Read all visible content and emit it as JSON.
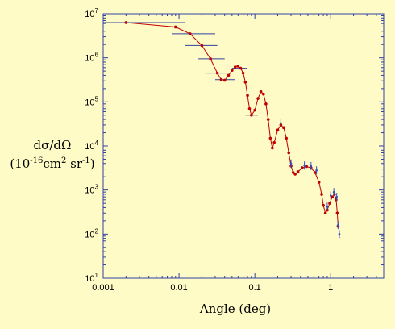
{
  "chart_data": {
    "type": "scatter",
    "x_scale": "log",
    "y_scale": "log",
    "xlim": [
      0.001,
      5
    ],
    "ylim": [
      10,
      10000000
    ],
    "grid": false,
    "x_ticks": [
      {
        "value": 0.001,
        "label": "0.001"
      },
      {
        "value": 0.01,
        "label": "0.01"
      },
      {
        "value": 0.1,
        "label": "0.1"
      },
      {
        "value": 1,
        "label": "1"
      }
    ],
    "y_ticks": [
      {
        "value": 10,
        "base": "10",
        "exp": "1"
      },
      {
        "value": 100,
        "base": "10",
        "exp": "2"
      },
      {
        "value": 1000,
        "base": "10",
        "exp": "3"
      },
      {
        "value": 10000,
        "base": "10",
        "exp": "4"
      },
      {
        "value": 100000,
        "base": "10",
        "exp": "5"
      },
      {
        "value": 1000000,
        "base": "10",
        "exp": "6"
      },
      {
        "value": 10000000,
        "base": "10",
        "exp": "7"
      }
    ],
    "xlabel": "Angle (deg)",
    "ylabel_line1": "dσ/dΩ",
    "ylabel_line2_prefix": "(10",
    "ylabel_exp1": "-16",
    "ylabel_mid": "cm",
    "ylabel_exp2": "2",
    "ylabel_mid2": " sr",
    "ylabel_exp3": "-1",
    "ylabel_suffix": ")",
    "colors": {
      "red": "#c00000",
      "blue": "#3050c0",
      "axis": "#3040a0",
      "background": "#fffbc6"
    },
    "series": [
      {
        "color": "red",
        "points": [
          [
            0.002,
            6300000
          ],
          [
            0.009,
            5000000
          ],
          [
            0.014,
            3500000
          ],
          [
            0.02,
            1900000
          ],
          [
            0.026,
            950000
          ],
          [
            0.032,
            450000
          ],
          [
            0.036,
            320000
          ],
          [
            0.04,
            310000
          ],
          [
            0.045,
            400000
          ],
          [
            0.05,
            520000
          ],
          [
            0.055,
            620000
          ],
          [
            0.06,
            650000
          ],
          [
            0.065,
            580000
          ],
          [
            0.07,
            450000
          ],
          [
            0.075,
            280000
          ],
          [
            0.08,
            140000
          ],
          [
            0.085,
            70000
          ],
          [
            0.09,
            50000
          ],
          [
            0.1,
            65000
          ],
          [
            0.11,
            120000
          ],
          [
            0.12,
            170000
          ],
          [
            0.13,
            150000
          ],
          [
            0.14,
            90000
          ],
          [
            0.15,
            40000
          ],
          [
            0.16,
            15000
          ],
          [
            0.17,
            9000
          ],
          [
            0.18,
            12000
          ],
          [
            0.2,
            23000
          ],
          [
            0.22,
            30000
          ],
          [
            0.24,
            26000
          ],
          [
            0.26,
            15000
          ],
          [
            0.28,
            7000
          ],
          [
            0.3,
            3500
          ],
          [
            0.32,
            2500
          ],
          [
            0.34,
            2300
          ],
          [
            0.37,
            2600
          ],
          [
            0.42,
            3200
          ],
          [
            0.48,
            3400
          ],
          [
            0.55,
            3200
          ],
          [
            0.62,
            2500
          ],
          [
            0.7,
            1500
          ],
          [
            0.76,
            800
          ],
          [
            0.8,
            450
          ],
          [
            0.85,
            300
          ],
          [
            0.9,
            350
          ],
          [
            0.97,
            500
          ],
          [
            1.05,
            700
          ],
          [
            1.12,
            800
          ],
          [
            1.18,
            600
          ],
          [
            1.22,
            300
          ],
          [
            1.25,
            150
          ]
        ]
      },
      {
        "color": "blue",
        "points": [
          [
            0.22,
            33000
          ],
          [
            0.3,
            4000
          ],
          [
            0.45,
            3600
          ],
          [
            0.55,
            3500
          ],
          [
            0.65,
            2800
          ],
          [
            0.9,
            420
          ],
          [
            1.0,
            750
          ],
          [
            1.1,
            900
          ],
          [
            1.2,
            700
          ],
          [
            1.25,
            160
          ],
          [
            1.3,
            100
          ]
        ]
      }
    ]
  }
}
